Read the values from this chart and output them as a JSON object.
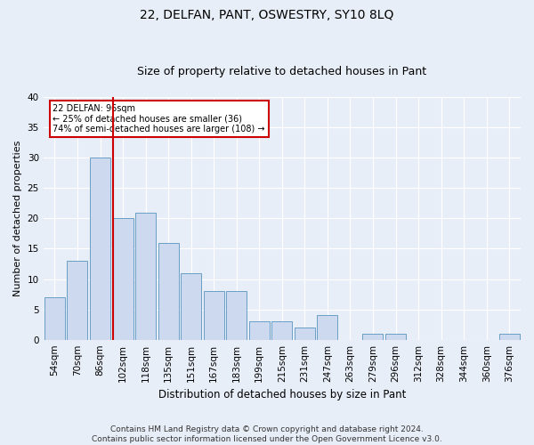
{
  "title": "22, DELFAN, PANT, OSWESTRY, SY10 8LQ",
  "subtitle": "Size of property relative to detached houses in Pant",
  "xlabel": "Distribution of detached houses by size in Pant",
  "ylabel": "Number of detached properties",
  "categories": [
    "54sqm",
    "70sqm",
    "86sqm",
    "102sqm",
    "118sqm",
    "135sqm",
    "151sqm",
    "167sqm",
    "183sqm",
    "199sqm",
    "215sqm",
    "231sqm",
    "247sqm",
    "263sqm",
    "279sqm",
    "296sqm",
    "312sqm",
    "328sqm",
    "344sqm",
    "360sqm",
    "376sqm"
  ],
  "values": [
    7,
    13,
    30,
    20,
    21,
    16,
    11,
    8,
    8,
    3,
    3,
    2,
    4,
    0,
    1,
    1,
    0,
    0,
    0,
    0,
    1
  ],
  "bar_color": "#ccd9ee",
  "bar_edge_color": "#6a9ec5",
  "vline_color": "#cc0000",
  "annotation_text": "22 DELFAN: 96sqm\n← 25% of detached houses are smaller (36)\n74% of semi-detached houses are larger (108) →",
  "annotation_box_color": "white",
  "annotation_box_edge": "#cc0000",
  "ylim": [
    0,
    40
  ],
  "yticks": [
    0,
    5,
    10,
    15,
    20,
    25,
    30,
    35,
    40
  ],
  "footer": "Contains HM Land Registry data © Crown copyright and database right 2024.\nContains public sector information licensed under the Open Government Licence v3.0.",
  "bg_color": "#e8eef7",
  "plot_bg": "#e8eef7",
  "grid_color": "#ffffff",
  "title_fontsize": 10,
  "subtitle_fontsize": 9,
  "xlabel_fontsize": 8.5,
  "ylabel_fontsize": 8,
  "tick_fontsize": 7.5,
  "footer_fontsize": 6.5
}
